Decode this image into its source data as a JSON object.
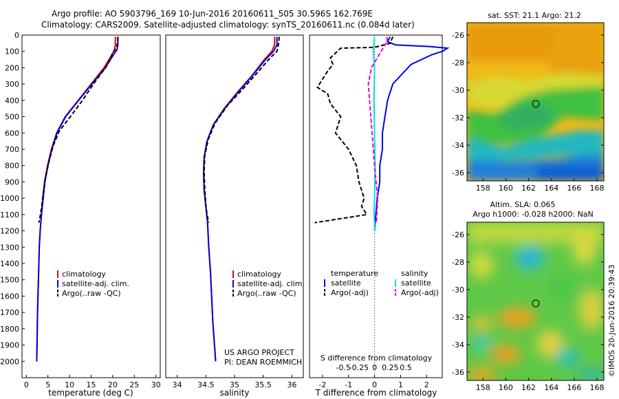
{
  "header": {
    "line1": "Argo profile: AO 5903796_169 10-Jun-2016 20160611_505 30.596S 162.769E",
    "line2": "Climatology: CARS2009. Satellite-adjusted climatology: synTS_20160611.nc (0.084d later)"
  },
  "sst_map": {
    "title": "sat. SST: 21.1 Argo: 21.2",
    "lon_ticks": [
      "158",
      "160",
      "162",
      "164",
      "166",
      "168"
    ],
    "lat_ticks": [
      "-26",
      "-28",
      "-30",
      "-32",
      "-34",
      "-36"
    ]
  },
  "sla_map": {
    "title1": "Altim. SLA: 0.065",
    "title2": "Argo h1000: -0.028 h2000: NaN",
    "lon_ticks": [
      "158",
      "160",
      "162",
      "164",
      "166",
      "168"
    ],
    "lat_ticks": [
      "-26",
      "-28",
      "-30",
      "-32",
      "-34",
      "-36"
    ]
  },
  "credit": "©IMOS 20-Jun-2016 20:39:43",
  "colors": {
    "climatology": "#e00000",
    "satellite": "#0000e0",
    "argo": "#000000",
    "sal_satellite": "#00e0e0",
    "sal_argo": "#e000e0"
  },
  "chart_data": [
    {
      "type": "line",
      "xlabel": "temperature (deg C)",
      "ylabel": "",
      "xlim": [
        -1,
        31
      ],
      "ylim": [
        2100,
        0
      ],
      "xticks": [
        "0",
        "5",
        "10",
        "15",
        "20",
        "25",
        "30"
      ],
      "yticks": [
        "0",
        "100",
        "200",
        "300",
        "400",
        "500",
        "600",
        "700",
        "800",
        "900",
        "1000",
        "1100",
        "1200",
        "1300",
        "1400",
        "1500",
        "1600",
        "1700",
        "1800",
        "1900",
        "2000"
      ],
      "legend": [
        "climatology",
        "satellite-adj. clim.",
        "Argo(..raw -QC)"
      ],
      "series": [
        {
          "name": "climatology",
          "x": [
            20.6,
            20.6,
            20.4,
            19.8,
            18.0,
            15.0,
            12.0,
            9.0,
            7.0,
            5.8,
            4.9,
            4.2,
            3.8,
            3.5,
            3.2,
            3.0,
            2.9,
            2.8,
            2.7,
            2.6,
            2.5,
            2.4
          ],
          "y": [
            10,
            60,
            90,
            120,
            200,
            300,
            400,
            500,
            600,
            700,
            800,
            900,
            1000,
            1100,
            1200,
            1300,
            1400,
            1500,
            1600,
            1700,
            1850,
            2000
          ]
        },
        {
          "name": "satellite-adj. clim.",
          "x": [
            21.2,
            21.2,
            21.0,
            20.2,
            18.3,
            15.2,
            12.1,
            9.1,
            7.1,
            5.9,
            5.0,
            4.3,
            3.9,
            3.5,
            3.2,
            3.0,
            2.9,
            2.8,
            2.7,
            2.6,
            2.5,
            2.4
          ],
          "y": [
            10,
            60,
            90,
            120,
            200,
            300,
            400,
            500,
            600,
            700,
            800,
            900,
            1000,
            1100,
            1200,
            1300,
            1400,
            1500,
            1600,
            1700,
            1850,
            2000
          ]
        },
        {
          "name": "Argo(..raw -QC)",
          "x": [
            21.2,
            21.1,
            20.8,
            20.0,
            18.6,
            15.8,
            13.0,
            10.2,
            7.6,
            6.2,
            5.2,
            4.4,
            3.9,
            3.5,
            3.2,
            2.9
          ],
          "y": [
            10,
            50,
            80,
            110,
            190,
            290,
            400,
            500,
            590,
            680,
            780,
            880,
            980,
            1060,
            1110,
            1150
          ]
        }
      ]
    },
    {
      "type": "line",
      "xlabel": "salinity",
      "ylabel": "",
      "xlim": [
        33.8,
        36.2
      ],
      "ylim": [
        2100,
        0
      ],
      "xticks": [
        "34",
        "34.5",
        "35",
        "35.5",
        "36"
      ],
      "legend": [
        "climatology",
        "satellite-adj. clim.",
        "Argo(..raw -QC)"
      ],
      "annotations": [
        "US ARGO PROJECT",
        "PI: DEAN ROEMMICH"
      ],
      "series": [
        {
          "name": "climatology",
          "x": [
            35.7,
            35.7,
            35.65,
            35.52,
            35.3,
            35.05,
            34.82,
            34.63,
            34.52,
            34.47,
            34.46,
            34.47,
            34.5,
            34.53,
            34.55,
            34.58,
            34.6,
            34.62,
            34.64,
            34.66,
            34.67
          ],
          "y": [
            10,
            60,
            100,
            150,
            250,
            350,
            450,
            550,
            650,
            750,
            850,
            950,
            1050,
            1150,
            1300,
            1450,
            1600,
            1750,
            1850,
            1950,
            2000
          ]
        },
        {
          "name": "satellite-adj. clim.",
          "x": [
            35.74,
            35.74,
            35.68,
            35.54,
            35.31,
            35.06,
            34.83,
            34.63,
            34.52,
            34.47,
            34.46,
            34.47,
            34.5,
            34.53,
            34.55,
            34.58,
            34.6,
            34.62,
            34.64,
            34.66,
            34.67
          ],
          "y": [
            10,
            60,
            100,
            150,
            250,
            350,
            450,
            550,
            650,
            750,
            850,
            950,
            1050,
            1150,
            1300,
            1450,
            1600,
            1750,
            1850,
            1950,
            2000
          ]
        },
        {
          "name": "Argo(..raw -QC)",
          "x": [
            35.78,
            35.77,
            35.74,
            35.62,
            35.4,
            35.12,
            34.88,
            34.66,
            34.54,
            34.48,
            34.47,
            34.48,
            34.5,
            34.52,
            34.55
          ],
          "y": [
            10,
            50,
            100,
            140,
            230,
            340,
            430,
            540,
            640,
            740,
            840,
            940,
            1040,
            1100,
            1150
          ]
        }
      ]
    },
    {
      "type": "line",
      "xlabel": "T difference from climatology",
      "xlabel2": "S difference from climatology",
      "ylabel": "",
      "xlim": [
        -2.5,
        2.6
      ],
      "ylim": [
        2100,
        0
      ],
      "xticks": [
        "-2",
        "-1",
        "0",
        "1",
        "2"
      ],
      "xticks2": [
        "-0.5",
        "-0.25",
        "0",
        "0.25",
        "0.5"
      ],
      "legend": {
        "temperature": [
          "satellite",
          "Argo(-adj)"
        ],
        "salinity": [
          "satellite",
          "Argo(-adj)"
        ]
      },
      "legend_titles": [
        "temperature",
        "salinity"
      ],
      "series": [
        {
          "name": "temperature satellite",
          "x": [
            0.6,
            0.5,
            0.8,
            2.1,
            2.8,
            2.6,
            2.2,
            1.4,
            0.7,
            0.5,
            0.4,
            0.3,
            0.3,
            0.2,
            0.2,
            0.1,
            0.0
          ],
          "y": [
            10,
            40,
            60,
            70,
            80,
            100,
            120,
            180,
            300,
            400,
            500,
            600,
            700,
            800,
            900,
            1000,
            1200
          ]
        },
        {
          "name": "temperature Argo(-adj)",
          "x": [
            0.7,
            0.6,
            0.0,
            -1.3,
            -1.7,
            -1.6,
            -1.8,
            -2.2,
            -1.8,
            -1.7,
            -1.3,
            -1.5,
            -1.0,
            -0.7,
            -0.6,
            -0.4,
            -0.5,
            -0.3,
            -2.3
          ],
          "y": [
            10,
            50,
            75,
            80,
            140,
            180,
            220,
            320,
            360,
            420,
            500,
            600,
            700,
            800,
            900,
            1000,
            1050,
            1100,
            1150
          ]
        },
        {
          "name": "salinity satellite",
          "x": [
            0.0,
            -0.02,
            0.0,
            -0.01,
            0.0,
            0.01,
            0.0,
            -0.01,
            0.0,
            0.0
          ],
          "y": [
            10,
            100,
            200,
            400,
            600,
            800,
            1000,
            1100,
            1150,
            1200
          ]
        },
        {
          "name": "salinity Argo(-adj)",
          "x": [
            0.2,
            0.2,
            0.15,
            -0.05,
            -0.1,
            -0.08,
            -0.06,
            -0.04,
            0.0,
            0.05,
            0.03
          ],
          "y": [
            10,
            40,
            70,
            200,
            300,
            400,
            500,
            600,
            800,
            1000,
            1150
          ]
        }
      ]
    }
  ]
}
